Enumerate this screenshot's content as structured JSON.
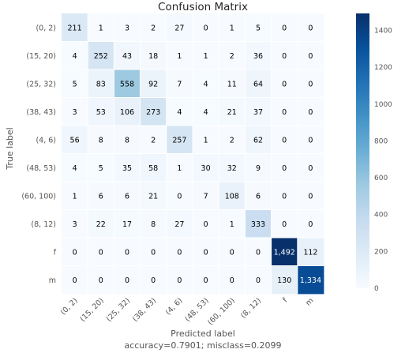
{
  "chart_data": {
    "type": "heatmap",
    "title": "Confusion Matrix",
    "ylabel": "True label",
    "xlabel": "Predicted label",
    "subtitle": "accuracy=0.7901; misclass=0.2099",
    "row_labels": [
      "(0, 2)",
      "(15, 20)",
      "(25, 32)",
      "(38, 43)",
      "(4, 6)",
      "(48, 53)",
      "(60, 100)",
      "(8, 12)",
      "f",
      "m"
    ],
    "col_labels": [
      "(0, 2)",
      "(15, 20)",
      "(25, 32)",
      "(38, 43)",
      "(4, 6)",
      "(48, 53)",
      "(60, 100)",
      "(8, 12)",
      "f",
      "m"
    ],
    "values": [
      [
        211,
        1,
        3,
        2,
        27,
        0,
        1,
        5,
        0,
        0
      ],
      [
        4,
        252,
        43,
        18,
        1,
        1,
        2,
        36,
        0,
        0
      ],
      [
        5,
        83,
        558,
        92,
        7,
        4,
        11,
        64,
        0,
        0
      ],
      [
        3,
        53,
        106,
        273,
        4,
        4,
        21,
        37,
        0,
        0
      ],
      [
        56,
        8,
        8,
        2,
        257,
        1,
        2,
        62,
        0,
        0
      ],
      [
        4,
        5,
        35,
        58,
        1,
        30,
        32,
        9,
        0,
        0
      ],
      [
        1,
        6,
        6,
        21,
        0,
        7,
        108,
        6,
        0,
        0
      ],
      [
        3,
        22,
        17,
        8,
        27,
        0,
        1,
        333,
        0,
        0
      ],
      [
        0,
        0,
        0,
        0,
        0,
        0,
        0,
        0,
        1492,
        112
      ],
      [
        0,
        0,
        0,
        0,
        0,
        0,
        0,
        0,
        130,
        1334
      ]
    ],
    "value_format": "thousands-comma",
    "colormap": "Blues",
    "colormap_stops": [
      "#f7fbff",
      "#deebf7",
      "#c6dbef",
      "#9ecae1",
      "#6baed6",
      "#4292c6",
      "#2171b5",
      "#08519c",
      "#08306b"
    ],
    "vmin": 0,
    "vmax": 1492,
    "colorbar_ticks": [
      0,
      200,
      400,
      600,
      800,
      1000,
      1200,
      1400
    ],
    "grid": true
  }
}
